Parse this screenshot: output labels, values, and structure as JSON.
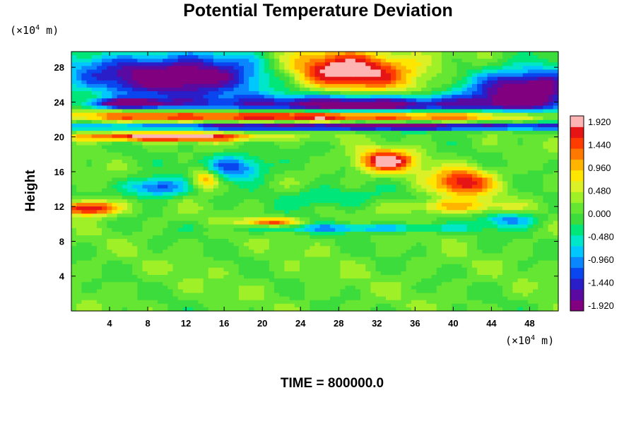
{
  "chart_data": {
    "type": "heatmap",
    "title": "Potential Temperature Deviation",
    "xlabel": "",
    "ylabel": "Height",
    "x_unit_prefix": "(×10",
    "x_unit_exp": "4",
    "x_unit_suffix": " m)",
    "y_unit_prefix": "(×10",
    "y_unit_exp": "4",
    "y_unit_suffix": " m)",
    "xlim": [
      0,
      51
    ],
    "ylim": [
      0,
      29.8
    ],
    "x_ticks": [
      "4",
      "8",
      "12",
      "16",
      "20",
      "24",
      "28",
      "32",
      "36",
      "40",
      "44",
      "48"
    ],
    "y_ticks": [
      "4",
      "8",
      "12",
      "16",
      "20",
      "24",
      "28"
    ],
    "colorbar": {
      "min": -1.92,
      "max": 1.92,
      "tick_labels": [
        "1.920",
        "1.440",
        "0.960",
        "0.480",
        "0.000",
        "-0.480",
        "-0.960",
        "-1.440",
        "-1.920"
      ],
      "colors": [
        "#800080",
        "#5a0aa0",
        "#2a1ec8",
        "#0a46f0",
        "#0a86ff",
        "#00c8ff",
        "#00e6c8",
        "#00e678",
        "#3cdc3c",
        "#64e632",
        "#a0f028",
        "#dcf028",
        "#ffe600",
        "#ffb400",
        "#ff7800",
        "#ff3c00",
        "#e61414",
        "#ffb4b4"
      ]
    },
    "features": [
      {
        "x": 12,
        "y": 27,
        "sx": 12,
        "sy": 2.6,
        "v": -2.2
      },
      {
        "x": 48,
        "y": 25.5,
        "sx": 6,
        "sy": 2.4,
        "v": -2.2
      },
      {
        "x": 28,
        "y": 27.5,
        "sx": 8,
        "sy": 2.4,
        "v": 2.2
      },
      {
        "x": 30,
        "y": 23.6,
        "sx": 16,
        "sy": 1.2,
        "v": -2.2
      },
      {
        "x": 6,
        "y": 23.8,
        "sx": 4,
        "sy": 0.6,
        "v": -2.0
      },
      {
        "x": 25,
        "y": 22.4,
        "sx": 26,
        "sy": 0.7,
        "v": 2.2
      },
      {
        "x": 30,
        "y": 21.2,
        "sx": 28,
        "sy": 0.45,
        "v": -2.1
      },
      {
        "x": 10,
        "y": 20.0,
        "sx": 10,
        "sy": 0.5,
        "v": 2.0
      },
      {
        "x": 33,
        "y": 17.2,
        "sx": 3,
        "sy": 1.3,
        "v": 1.9
      },
      {
        "x": 41,
        "y": 14.8,
        "sx": 3.2,
        "sy": 1.6,
        "v": 1.6
      },
      {
        "x": 2,
        "y": 11.8,
        "sx": 3,
        "sy": 0.8,
        "v": 1.9
      },
      {
        "x": 17,
        "y": 16.5,
        "sx": 3.5,
        "sy": 1.5,
        "v": -1.3
      },
      {
        "x": 9,
        "y": 14.2,
        "sx": 3.2,
        "sy": 1.1,
        "v": -1.4
      },
      {
        "x": 14,
        "y": 15.2,
        "sx": 1.5,
        "sy": 1.2,
        "v": 1.3
      },
      {
        "x": 21,
        "y": 10.2,
        "sx": 3,
        "sy": 0.5,
        "v": 1.4
      },
      {
        "x": 30,
        "y": 9.5,
        "sx": 12,
        "sy": 0.5,
        "v": -0.9
      },
      {
        "x": 46,
        "y": 10.5,
        "sx": 3,
        "sy": 0.8,
        "v": -1.0
      },
      {
        "x": 27,
        "y": 13.0,
        "sx": 5,
        "sy": 1.2,
        "v": -0.6
      },
      {
        "x": 40,
        "y": 12.0,
        "sx": 6,
        "sy": 0.8,
        "v": 0.8
      },
      {
        "x": 24,
        "y": 4.0,
        "sx": 30,
        "sy": 4.0,
        "v": 0.05
      }
    ]
  },
  "footer": {
    "label": "TIME = 800000.0"
  }
}
